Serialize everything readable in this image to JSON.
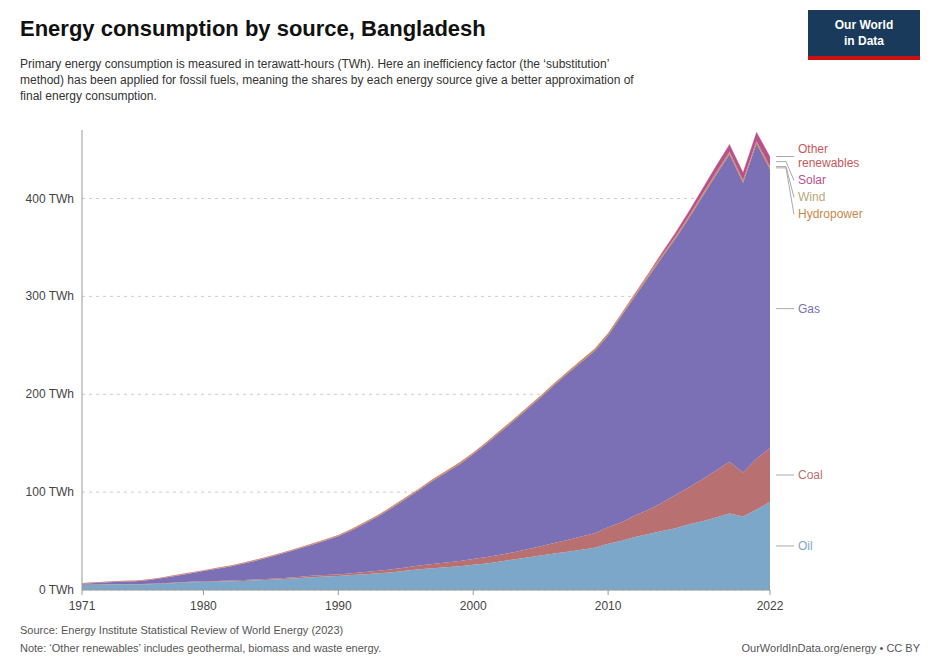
{
  "chart_data": {
    "type": "area",
    "stacked": true,
    "title": "Energy consumption by source, Bangladesh",
    "subtitle": [
      "Primary energy consumption is measured in terawatt-hours (TWh). Here an inefficiency factor (the ‘substitution’",
      "method) has been applied for fossil fuels, meaning the shares by each energy source give a better approximation of",
      "final energy consumption."
    ],
    "annotations": [
      "Source: Energy Institute Statistical Review of World Energy (2023)",
      "Note: ‘Other renewables’ includes geothermal, biomass and waste energy.",
      "OurWorldInData.org/energy • CC BY",
      "Our World",
      "in Data"
    ],
    "x": [
      1971,
      1972,
      1973,
      1974,
      1975,
      1976,
      1977,
      1978,
      1979,
      1980,
      1981,
      1982,
      1983,
      1984,
      1985,
      1986,
      1987,
      1988,
      1989,
      1990,
      1991,
      1992,
      1993,
      1994,
      1995,
      1996,
      1997,
      1998,
      1999,
      2000,
      2001,
      2002,
      2003,
      2004,
      2005,
      2006,
      2007,
      2008,
      2009,
      2010,
      2011,
      2012,
      2013,
      2014,
      2015,
      2016,
      2017,
      2018,
      2019,
      2020,
      2021,
      2022
    ],
    "series": [
      {
        "name": "Oil",
        "color": "#7ca7c8",
        "values": [
          5.0,
          5.2,
          5.5,
          5.8,
          5.6,
          5.9,
          6.3,
          7.1,
          7.8,
          8.2,
          8.6,
          8.9,
          9.3,
          9.9,
          10.6,
          11.2,
          12.1,
          13.1,
          13.7,
          14.2,
          15.2,
          16.2,
          17.2,
          18.2,
          19.7,
          21.2,
          22.2,
          23.2,
          24.2,
          25.7,
          27.2,
          29.2,
          31.2,
          33.2,
          35.2,
          37.2,
          39.2,
          41.2,
          43.2,
          47.2,
          50.2,
          54.2,
          57.2,
          60.2,
          63.2,
          67.2,
          70.2,
          74.2,
          78.2,
          75.2,
          82.2,
          90.0
        ]
      },
      {
        "name": "Coal",
        "color": "#b87070",
        "values": [
          0.4,
          0.4,
          0.4,
          0.4,
          0.4,
          0.4,
          0.5,
          0.5,
          0.6,
          0.7,
          0.7,
          0.7,
          0.8,
          0.9,
          0.9,
          1.1,
          1.2,
          1.4,
          1.5,
          1.7,
          1.9,
          2.1,
          2.4,
          2.9,
          3.4,
          3.9,
          4.4,
          4.9,
          5.4,
          5.9,
          6.4,
          6.9,
          7.4,
          8.4,
          9.4,
          10.9,
          11.9,
          13.4,
          14.9,
          16.9,
          18.9,
          21.9,
          24.9,
          28.9,
          33.9,
          37.9,
          42.9,
          47.9,
          52.9,
          44.9,
          51.9,
          55.0
        ]
      },
      {
        "name": "Gas",
        "color": "#7b6fb5",
        "values": [
          1.0,
          1.5,
          2.0,
          2.5,
          3.0,
          4.0,
          5.5,
          7.0,
          8.5,
          10.5,
          12.5,
          14.5,
          17.0,
          19.5,
          22.5,
          25.5,
          28.5,
          31.5,
          35.0,
          39.0,
          44.0,
          50.0,
          56.0,
          63.0,
          70.0,
          77.0,
          85.0,
          92.0,
          99.0,
          107.0,
          116.0,
          125.0,
          134.0,
          143.0,
          152.0,
          161.0,
          170.0,
          178.0,
          186.0,
          196.0,
          211.0,
          224.0,
          238.0,
          251.0,
          262.0,
          275.0,
          289.0,
          302.0,
          314.0,
          296.0,
          322.0,
          285.0
        ]
      },
      {
        "name": "Hydropower",
        "color": "#c8894a",
        "values": [
          0.3,
          0.3,
          0.3,
          0.3,
          0.3,
          0.3,
          0.3,
          0.4,
          0.4,
          0.4,
          0.5,
          0.5,
          0.5,
          0.6,
          0.6,
          0.6,
          0.7,
          0.7,
          0.8,
          0.8,
          0.9,
          0.9,
          1.0,
          1.1,
          1.1,
          1.2,
          1.2,
          1.3,
          1.3,
          1.4,
          1.4,
          1.5,
          1.5,
          1.6,
          1.6,
          1.7,
          1.7,
          1.8,
          1.8,
          1.9,
          2.0,
          2.1,
          2.1,
          2.2,
          2.2,
          2.3,
          2.3,
          2.4,
          2.5,
          2.5,
          2.6,
          2.6
        ]
      },
      {
        "name": "Wind",
        "color": "#b8a878",
        "values": [
          0.0,
          0.0,
          0.0,
          0.0,
          0.0,
          0.0,
          0.0,
          0.0,
          0.0,
          0.0,
          0.0,
          0.0,
          0.0,
          0.0,
          0.0,
          0.0,
          0.0,
          0.0,
          0.0,
          0.0,
          0.0,
          0.0,
          0.0,
          0.0,
          0.0,
          0.0,
          0.0,
          0.0,
          0.0,
          0.0,
          0.0,
          0.0,
          0.0,
          0.0,
          0.0,
          0.0,
          0.0,
          0.0,
          0.0,
          0.0,
          0.1,
          0.1,
          0.1,
          0.1,
          0.1,
          0.1,
          0.1,
          0.1,
          0.1,
          0.1,
          0.1,
          0.1
        ]
      },
      {
        "name": "Solar",
        "color": "#b85090",
        "values": [
          0.0,
          0.0,
          0.0,
          0.0,
          0.0,
          0.0,
          0.0,
          0.0,
          0.0,
          0.0,
          0.0,
          0.0,
          0.0,
          0.0,
          0.0,
          0.0,
          0.0,
          0.0,
          0.0,
          0.0,
          0.0,
          0.0,
          0.0,
          0.0,
          0.0,
          0.0,
          0.0,
          0.0,
          0.0,
          0.0,
          0.0,
          0.0,
          0.0,
          0.0,
          0.0,
          0.0,
          0.0,
          0.0,
          0.0,
          0.1,
          0.3,
          0.6,
          1.2,
          2.2,
          3.5,
          4.5,
          5.5,
          6.5,
          7.5,
          8.0,
          9.0,
          10.0
        ]
      },
      {
        "name": "Other\nrenewables",
        "color": "#c85858",
        "values": [
          0.5,
          0.5,
          0.5,
          0.5,
          0.5,
          0.5,
          0.5,
          0.5,
          0.5,
          0.5,
          0.5,
          0.5,
          0.5,
          0.5,
          0.5,
          0.5,
          0.5,
          0.5,
          0.5,
          0.5,
          0.5,
          0.5,
          0.5,
          0.5,
          0.5,
          0.5,
          0.5,
          0.5,
          0.5,
          0.5,
          0.5,
          0.5,
          0.5,
          0.5,
          0.5,
          0.5,
          0.5,
          0.5,
          0.5,
          0.5,
          0.5,
          0.5,
          0.5,
          0.5,
          0.5,
          0.5,
          0.5,
          0.5,
          0.5,
          0.5,
          0.5,
          0.5
        ]
      }
    ],
    "xlim": [
      1971,
      2022
    ],
    "xticks": [
      1971,
      1980,
      1990,
      2000,
      2010,
      2022
    ],
    "ylim": [
      0,
      470
    ],
    "yticks": [
      {
        "value": 0,
        "label": "0 TWh"
      },
      {
        "value": 100,
        "label": "100 TWh"
      },
      {
        "value": 200,
        "label": "200 TWh"
      },
      {
        "value": 300,
        "label": "300 TWh"
      },
      {
        "value": 400,
        "label": "400 TWh"
      }
    ],
    "grid": true,
    "legend": "right"
  }
}
